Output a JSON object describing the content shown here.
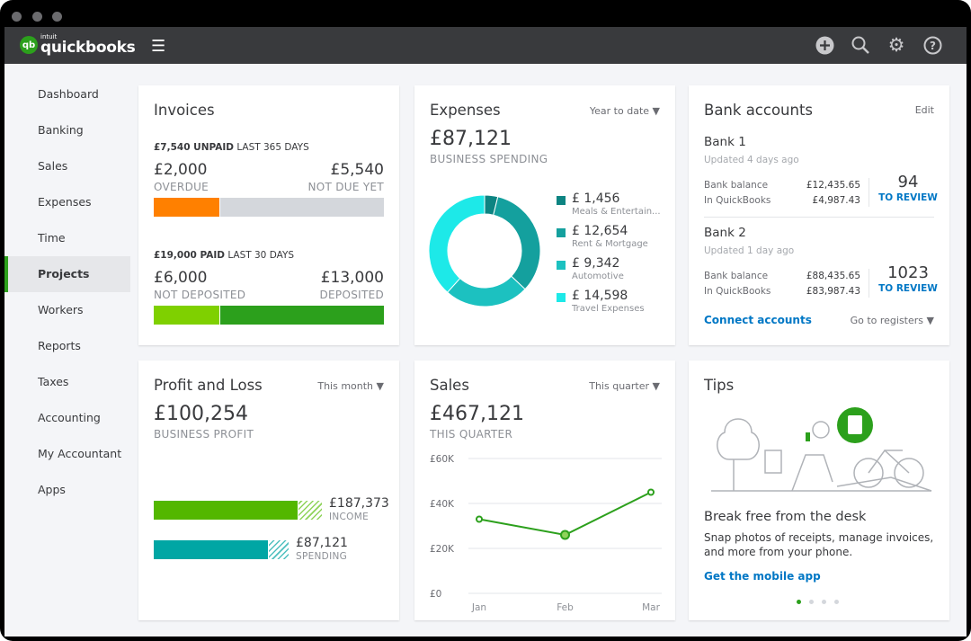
{
  "app": {
    "logo_brand": "intuit",
    "logo_name": "quickbooks",
    "logo_mark": "qb"
  },
  "header": {
    "icons": [
      "plus-circle-icon",
      "search-icon",
      "gear-icon",
      "help-icon"
    ]
  },
  "sidebar": {
    "items": [
      {
        "label": "Dashboard"
      },
      {
        "label": "Banking"
      },
      {
        "label": "Sales"
      },
      {
        "label": "Expenses"
      },
      {
        "label": "Time"
      },
      {
        "label": "Projects",
        "active": true
      },
      {
        "label": "Workers"
      },
      {
        "label": "Reports"
      },
      {
        "label": "Taxes"
      },
      {
        "label": "Accounting"
      },
      {
        "label": "My Accountant"
      },
      {
        "label": "Apps"
      }
    ]
  },
  "invoices": {
    "title": "Invoices",
    "unpaid_amount": "£7,540 UNPAID",
    "unpaid_period": "LAST 365 DAYS",
    "overdue_amount": "£2,000",
    "overdue_label": "OVERDUE",
    "notdue_amount": "£5,540",
    "notdue_label": "NOT DUE YET",
    "paid_amount": "£19,000 PAID",
    "paid_period": "LAST 30 DAYS",
    "notdep_amount": "£6,000",
    "notdep_label": "NOT DEPOSITED",
    "dep_amount": "£13,000",
    "dep_label": "DEPOSITED",
    "colors": {
      "overdue": "#ff8000",
      "notdue": "#d4d7dc",
      "notdep": "#7fd000",
      "dep": "#2ca01c"
    }
  },
  "expenses": {
    "title": "Expenses",
    "period": "Year to date",
    "total": "£87,121",
    "total_label": "BUSINESS SPENDING"
  },
  "bank": {
    "title": "Bank accounts",
    "edit": "Edit",
    "accounts": [
      {
        "name": "Bank 1",
        "updated": "Updated 4 days ago",
        "bank_balance_label": "Bank balance",
        "bank_balance": "£12,435.65",
        "qb_label": "In QuickBooks",
        "qb_balance": "£4,987.43",
        "review_count": "94",
        "review_label": "TO REVIEW"
      },
      {
        "name": "Bank 2",
        "updated": "Updated 1 day ago",
        "bank_balance_label": "Bank balance",
        "bank_balance": "£88,435.65",
        "qb_label": "In QuickBooks",
        "qb_balance": "£83,987.43",
        "review_count": "1023",
        "review_label": "TO REVIEW"
      }
    ],
    "connect": "Connect accounts",
    "registers": "Go to registers"
  },
  "pnl": {
    "title": "Profit and Loss",
    "period": "This month",
    "total": "£100,254",
    "total_label": "BUSINESS PROFIT",
    "income_amount": "£187,373",
    "income_label": "INCOME",
    "spending_amount": "£87,121",
    "spending_label": "SPENDING",
    "colors": {
      "income": "#53b700",
      "spending": "#00a6a4"
    }
  },
  "sales": {
    "title": "Sales",
    "period": "This quarter",
    "total": "£467,121",
    "total_label": "THIS QUARTER"
  },
  "tips": {
    "title": "Tips",
    "heading": "Break free from the desk",
    "body": "Snap photos of receipts, manage invoices, and more from your phone.",
    "link": "Get the mobile app",
    "page": 1,
    "pages": 4
  },
  "chart_data": [
    {
      "type": "pie",
      "donut": true,
      "categories": [
        "Meals & Entertain...",
        "Rent & Mortgage",
        "Automotive",
        "Travel Expenses"
      ],
      "labels": [
        "£ 1,456",
        "£ 12,654",
        "£ 9,342",
        "£ 14,598"
      ],
      "values": [
        1456,
        12654,
        9342,
        14598
      ],
      "colors": [
        "#0d8482",
        "#14a09e",
        "#1cc1c0",
        "#1de9e8"
      ],
      "legend": "right"
    },
    {
      "type": "line",
      "categories": [
        "Jan",
        "Feb",
        "Mar"
      ],
      "values": [
        33000,
        26000,
        45000
      ],
      "yticks": [
        "£0",
        "£20K",
        "£40K",
        "£60K"
      ],
      "ylim": [
        0,
        60000
      ],
      "grid": true,
      "color": "#2ca01c",
      "highlight": "Feb"
    }
  ]
}
